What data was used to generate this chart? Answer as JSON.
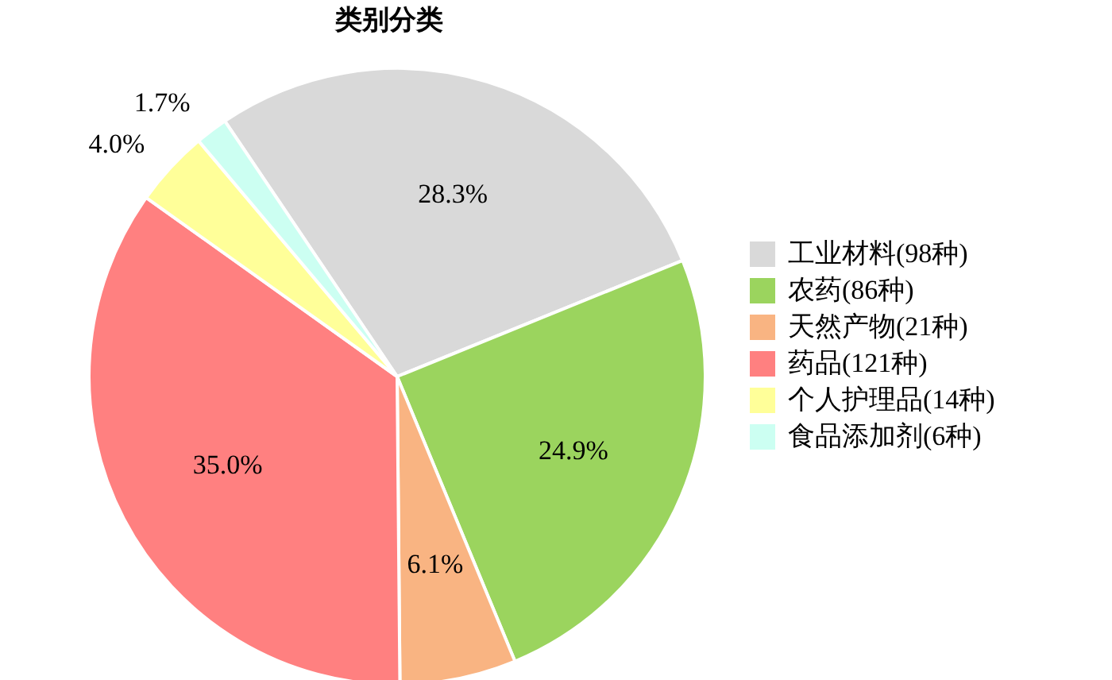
{
  "chart_data": {
    "type": "pie",
    "title": "类别分类",
    "categories": [
      "工业材料(98种)",
      "农药(86种)",
      "天然产物(21种)",
      "药品(121种)",
      "个人护理品(14种)",
      "食品添加剂(6种)"
    ],
    "values": [
      28.3,
      24.9,
      6.1,
      35.0,
      4.0,
      1.7
    ],
    "value_labels": [
      "28.3%",
      "24.9%",
      "6.1%",
      "35.0%",
      "4.0%",
      "1.7%"
    ],
    "colors": [
      "#d9d9d9",
      "#9bd45e",
      "#f9b482",
      "#ff8080",
      "#ffff99",
      "#ccfff2"
    ],
    "legend": "right"
  }
}
